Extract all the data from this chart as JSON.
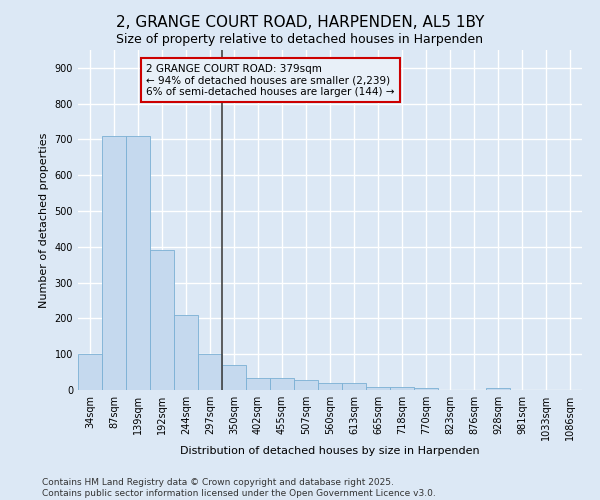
{
  "title": "2, GRANGE COURT ROAD, HARPENDEN, AL5 1BY",
  "subtitle": "Size of property relative to detached houses in Harpenden",
  "xlabel": "Distribution of detached houses by size in Harpenden",
  "ylabel": "Number of detached properties",
  "categories": [
    "34sqm",
    "87sqm",
    "139sqm",
    "192sqm",
    "244sqm",
    "297sqm",
    "350sqm",
    "402sqm",
    "455sqm",
    "507sqm",
    "560sqm",
    "613sqm",
    "665sqm",
    "718sqm",
    "770sqm",
    "823sqm",
    "876sqm",
    "928sqm",
    "981sqm",
    "1033sqm",
    "1086sqm"
  ],
  "values": [
    100,
    710,
    710,
    390,
    210,
    100,
    70,
    33,
    33,
    28,
    20,
    20,
    8,
    8,
    5,
    0,
    0,
    5,
    0,
    0,
    0
  ],
  "bar_color": "#c5d9ee",
  "bar_edgecolor": "#7aafd4",
  "vline_x_index": 6,
  "vline_color": "#444444",
  "annotation_text": "2 GRANGE COURT ROAD: 379sqm\n← 94% of detached houses are smaller (2,239)\n6% of semi-detached houses are larger (144) →",
  "annotation_box_edgecolor": "#cc0000",
  "annotation_box_facecolor": "#e8f0f8",
  "ylim": [
    0,
    950
  ],
  "yticks": [
    0,
    100,
    200,
    300,
    400,
    500,
    600,
    700,
    800,
    900
  ],
  "background_color": "#dce8f5",
  "plot_bg_color": "#dce8f5",
  "grid_color": "#ffffff",
  "footer": "Contains HM Land Registry data © Crown copyright and database right 2025.\nContains public sector information licensed under the Open Government Licence v3.0.",
  "title_fontsize": 11,
  "subtitle_fontsize": 9,
  "xlabel_fontsize": 8,
  "ylabel_fontsize": 8,
  "tick_fontsize": 7,
  "annot_fontsize": 7.5,
  "footer_fontsize": 6.5
}
